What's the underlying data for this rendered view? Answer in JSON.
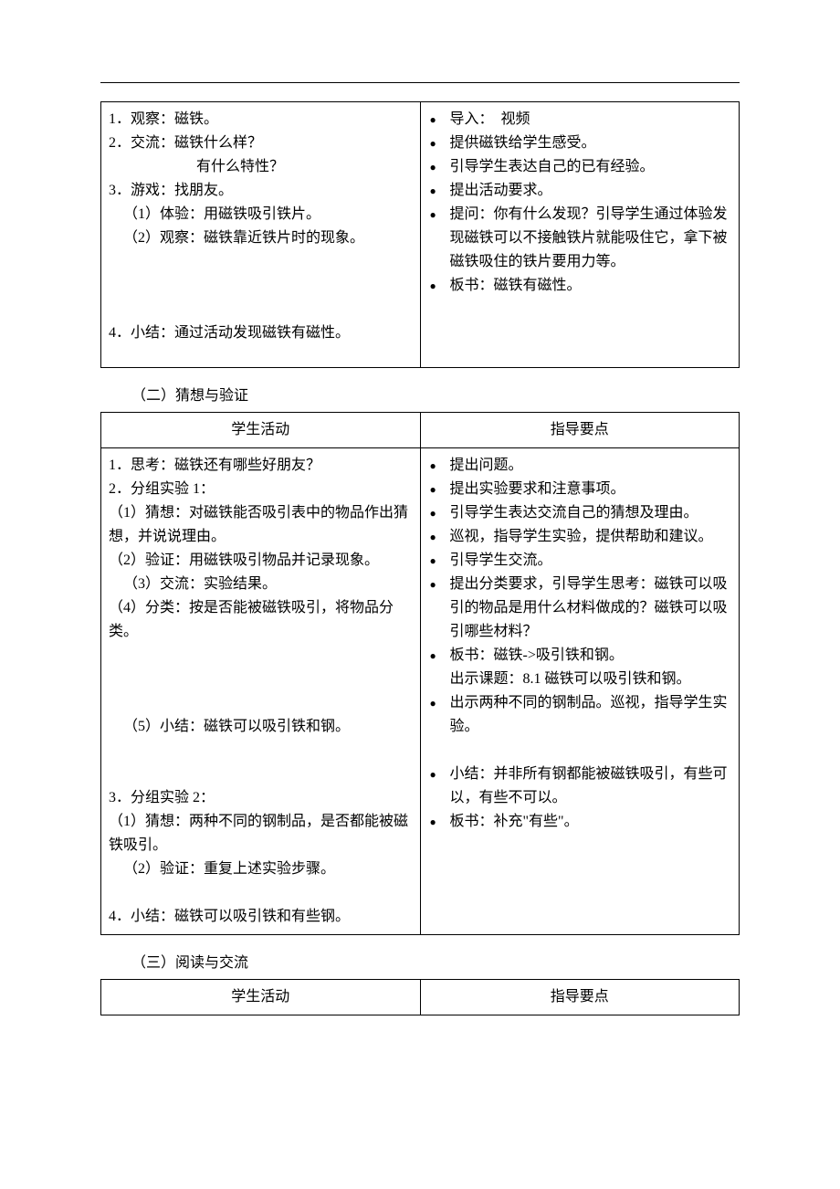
{
  "tables": {
    "t1": {
      "left": [
        "1．观察：磁铁。",
        "2．交流：磁铁什么样？",
        {
          "text": "有什么特性？",
          "cls": "indent2"
        },
        "3．游戏：找朋友。",
        {
          "text": "（1）体验：用磁铁吸引铁片。",
          "cls": "indent"
        },
        {
          "text": "（2）观察：磁铁靠近铁片时的现象。",
          "cls": "indent"
        },
        {
          "text": "",
          "cls": "spacer"
        },
        {
          "text": "",
          "cls": "spacer"
        },
        {
          "text": "",
          "cls": "spacer"
        },
        "4．小结：通过活动发现磁铁有磁性。"
      ],
      "right": [
        "导入：　视频",
        "提供磁铁给学生感受。",
        "引导学生表达自己的已有经验。",
        "提出活动要求。",
        "提问：你有什么发现？引导学生通过体验发现磁铁可以不接触铁片就能吸住它，拿下被磁铁吸住的铁片要用力等。",
        "板书：磁铁有磁性。"
      ]
    },
    "t2": {
      "header": {
        "left": "学生活动",
        "right": "指导要点"
      },
      "left": [
        "1．思考：磁铁还有哪些好朋友？",
        "2．分组实验 1：",
        {
          "text": "（1）猜想：对磁铁能否吸引表中的物品作出猜想，并说说理由。",
          "cls": "indent"
        },
        {
          "text": "（2）验证：用磁铁吸引物品并记录现象。",
          "cls": "indent"
        },
        {
          "text": "（3）交流：实验结果。",
          "cls": "indent"
        },
        {
          "text": "（4）分类：按是否能被磁铁吸引，将物品分类。",
          "cls": "indent"
        },
        {
          "text": "",
          "cls": "spacer"
        },
        {
          "text": "",
          "cls": "spacer"
        },
        {
          "text": "",
          "cls": "spacer"
        },
        {
          "text": "（5）小结：磁铁可以吸引铁和钢。",
          "cls": "indent"
        },
        {
          "text": "",
          "cls": "spacer"
        },
        {
          "text": "",
          "cls": "spacer"
        },
        "3．分组实验 2：",
        {
          "text": "（1）猜想：两种不同的钢制品，是否都能被磁铁吸引。",
          "cls": "indent"
        },
        {
          "text": "（2）验证：重复上述实验步骤。",
          "cls": "indent"
        },
        {
          "text": "",
          "cls": "spacer"
        },
        "4．小结：磁铁可以吸引铁和有些钢。"
      ],
      "right": [
        "提出问题。",
        "提出实验要求和注意事项。",
        "引导学生表达交流自己的猜想及理由。",
        "巡视，指导学生实验，提供帮助和建议。",
        "引导学生交流。",
        "提出分类要求，引导学生思考：磁铁可以吸引的物品是用什么材料做成的？磁铁可以吸引哪些材料？",
        {
          "text": "板书：磁铁->吸引铁和钢。\n出示课题：8.1 磁铁可以吸引铁和钢。",
          "multiline": true
        },
        "出示两种不同的钢制品。巡视，指导学生实验。",
        {
          "text": "",
          "cls": "spacer-nb"
        },
        "小结：并非所有钢都能被磁铁吸引，有些可以，有些不可以。",
        "板书：补充\"有些\"。"
      ]
    },
    "t3": {
      "header": {
        "left": "学生活动",
        "right": "指导要点"
      }
    }
  },
  "sections": {
    "s2": "（二）猜想与验证",
    "s3": "（三）阅读与交流"
  }
}
